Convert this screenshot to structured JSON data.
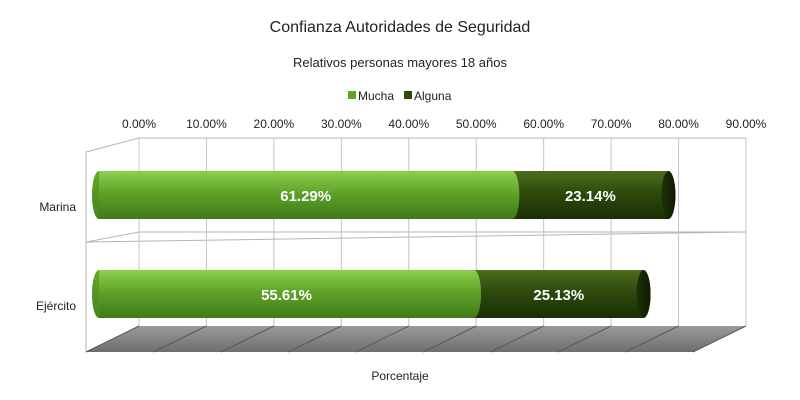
{
  "chart_data": {
    "type": "bar",
    "orientation": "horizontal",
    "stacked": true,
    "title": "Confianza Autoridades de Seguridad",
    "subtitle": "Relativos personas mayores 18 años",
    "xlabel": "Porcentaje",
    "ylabel": "",
    "categories": [
      "Marina",
      "Ejército"
    ],
    "series": [
      {
        "name": "Mucha",
        "values": [
          61.29,
          55.61
        ],
        "labels": [
          "61.29%",
          "55.61%"
        ],
        "color": "#5fa32a"
      },
      {
        "name": "Alguna",
        "values": [
          23.14,
          25.13
        ],
        "labels": [
          "23.14%",
          "25.13%"
        ],
        "color": "#2e4a0c"
      }
    ],
    "xlim": [
      0,
      90
    ],
    "ticks": [
      "0.00%",
      "10.00%",
      "20.00%",
      "30.00%",
      "40.00%",
      "50.00%",
      "60.00%",
      "70.00%",
      "80.00%",
      "90.00%"
    ],
    "grid": true,
    "legend_position": "top"
  }
}
